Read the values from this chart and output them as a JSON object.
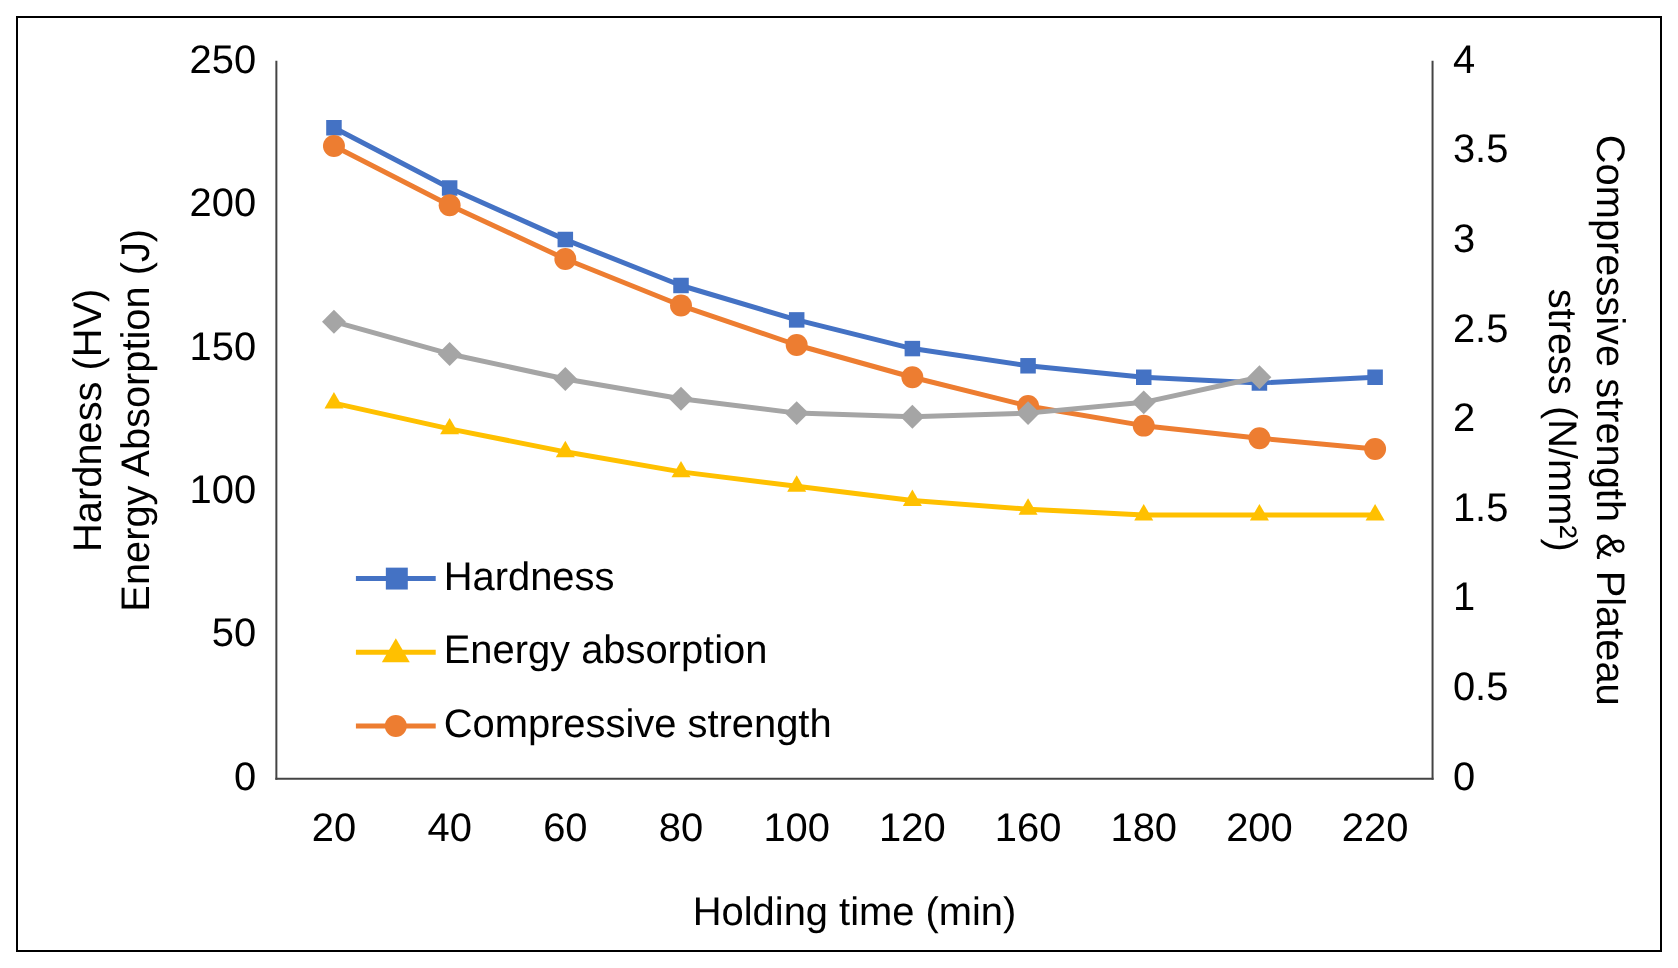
{
  "chart_data": {
    "type": "line",
    "xlabel": "Holding time (min)",
    "ylabel": "Hardness (HV)\nEnergy Absorption (J)",
    "y2label": "Compressive strength & Plateau\nstress (N/mm²)",
    "categories": [
      "20",
      "40",
      "60",
      "80",
      "100",
      "120",
      "160",
      "180",
      "200",
      "220"
    ],
    "series": [
      {
        "name": "Hardness",
        "color": "#4472c4",
        "marker": "square",
        "values": [
          227,
          206,
          188,
          172,
          160,
          150,
          144,
          140,
          138,
          140
        ]
      },
      {
        "name": "Energy absorption",
        "color": "#ffc000",
        "marker": "triangle",
        "values": [
          131,
          122,
          114,
          107,
          102,
          97,
          94,
          92,
          92,
          92
        ]
      },
      {
        "name": "Compressive strength",
        "color": "#ed7d31",
        "marker": "circle",
        "axis": "y2",
        "values": [
          3.53,
          3.2,
          2.9,
          2.64,
          2.42,
          2.24,
          2.08,
          1.97,
          1.9,
          1.84
        ]
      },
      {
        "color": "#a5a5a5",
        "marker": "diamond",
        "axis": "y2",
        "values": [
          2.55,
          2.37,
          2.23,
          2.12,
          2.04,
          2.02,
          2.04,
          2.1,
          2.24,
          null
        ]
      }
    ],
    "ylim": [
      0,
      250
    ],
    "yticks": [
      0,
      50,
      100,
      150,
      200,
      250
    ],
    "y2lim": [
      0,
      4
    ],
    "y2ticks": [
      0,
      0.5,
      1,
      1.5,
      2,
      2.5,
      3,
      3.5,
      4
    ],
    "grid": false,
    "legend": "bottom left"
  }
}
